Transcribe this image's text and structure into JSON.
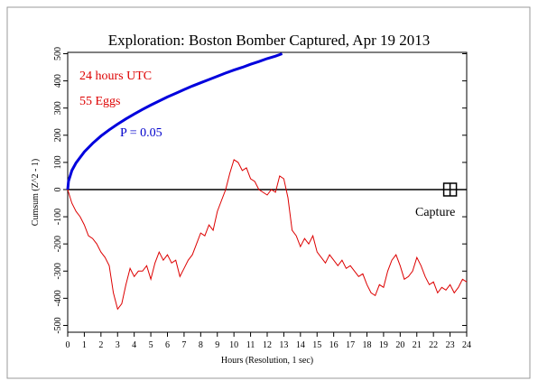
{
  "chart_data": {
    "type": "line",
    "title": "Exploration: Boston Bomber Captured, Apr 19 2013",
    "xlabel": "Hours (Resolution, 1 sec)",
    "ylabel": "Cumsum (Z^2 - 1)",
    "xlim": [
      0,
      24
    ],
    "ylim": [
      -525,
      505
    ],
    "xticks": [
      0,
      1,
      2,
      3,
      4,
      5,
      6,
      7,
      8,
      9,
      10,
      11,
      12,
      13,
      14,
      15,
      16,
      17,
      18,
      19,
      20,
      21,
      22,
      23,
      24
    ],
    "yticks": [
      -500,
      -400,
      -300,
      -200,
      -100,
      0,
      100,
      200,
      300,
      400,
      500
    ],
    "annotations": [
      {
        "text": "24 hours UTC",
        "color": "#dd0000"
      },
      {
        "text": "55 Eggs",
        "color": "#dd0000"
      },
      {
        "text": "P = 0.05",
        "color": "#0000cc"
      },
      {
        "text": "Capture",
        "color": "#000000"
      }
    ],
    "event": {
      "x": 23,
      "y": 0
    },
    "series": [
      {
        "color": "#0000dd",
        "x": [
          0,
          0.05,
          0.25,
          0.5,
          1,
          1.5,
          2,
          2.5,
          3,
          3.5,
          4,
          4.5,
          5,
          5.5,
          6,
          6.5,
          7,
          7.5,
          8,
          8.5,
          9,
          9.5,
          10,
          10.5,
          11,
          11.5,
          12,
          12.5,
          12.9
        ],
        "values": [
          0,
          31,
          70,
          98,
          139,
          170,
          197,
          220,
          241,
          260,
          278,
          295,
          311,
          326,
          341,
          354,
          368,
          381,
          393,
          405,
          417,
          429,
          440,
          450,
          461,
          471,
          482,
          491,
          500
        ]
      },
      {
        "color": "#dd0000",
        "x": [
          0,
          0.25,
          0.5,
          0.75,
          1,
          1.25,
          1.5,
          1.75,
          2,
          2.25,
          2.5,
          2.75,
          3,
          3.25,
          3.5,
          3.75,
          4,
          4.25,
          4.5,
          4.75,
          5,
          5.25,
          5.5,
          5.75,
          6,
          6.25,
          6.5,
          6.75,
          7,
          7.25,
          7.5,
          7.75,
          8,
          8.25,
          8.5,
          8.75,
          9,
          9.25,
          9.5,
          9.75,
          10,
          10.25,
          10.5,
          10.75,
          11,
          11.25,
          11.5,
          11.75,
          12,
          12.25,
          12.5,
          12.75,
          13,
          13.25,
          13.5,
          13.75,
          14,
          14.25,
          14.5,
          14.75,
          15,
          15.25,
          15.5,
          15.75,
          16,
          16.25,
          16.5,
          16.75,
          17,
          17.25,
          17.5,
          17.75,
          18,
          18.25,
          18.5,
          18.75,
          19,
          19.25,
          19.5,
          19.75,
          20,
          20.25,
          20.5,
          20.75,
          21,
          21.25,
          21.5,
          21.75,
          22,
          22.25,
          22.5,
          22.75,
          23,
          23.25,
          23.5,
          23.75,
          24
        ],
        "values": [
          0,
          -50,
          -80,
          -100,
          -130,
          -170,
          -180,
          -200,
          -230,
          -250,
          -280,
          -380,
          -440,
          -420,
          -350,
          -290,
          -320,
          -300,
          -300,
          -280,
          -330,
          -270,
          -230,
          -260,
          -240,
          -270,
          -260,
          -320,
          -290,
          -260,
          -240,
          -200,
          -160,
          -170,
          -130,
          -150,
          -80,
          -40,
          0,
          60,
          110,
          100,
          70,
          80,
          40,
          30,
          0,
          -10,
          -20,
          0,
          -10,
          50,
          40,
          -30,
          -150,
          -170,
          -210,
          -180,
          -200,
          -170,
          -230,
          -250,
          -270,
          -240,
          -260,
          -280,
          -260,
          -290,
          -280,
          -300,
          -320,
          -310,
          -350,
          -380,
          -390,
          -350,
          -360,
          -300,
          -260,
          -240,
          -280,
          -330,
          -320,
          -300,
          -250,
          -280,
          -320,
          -350,
          -340,
          -380,
          -360,
          -370,
          -350,
          -380,
          -360,
          -330,
          -340
        ]
      }
    ]
  }
}
